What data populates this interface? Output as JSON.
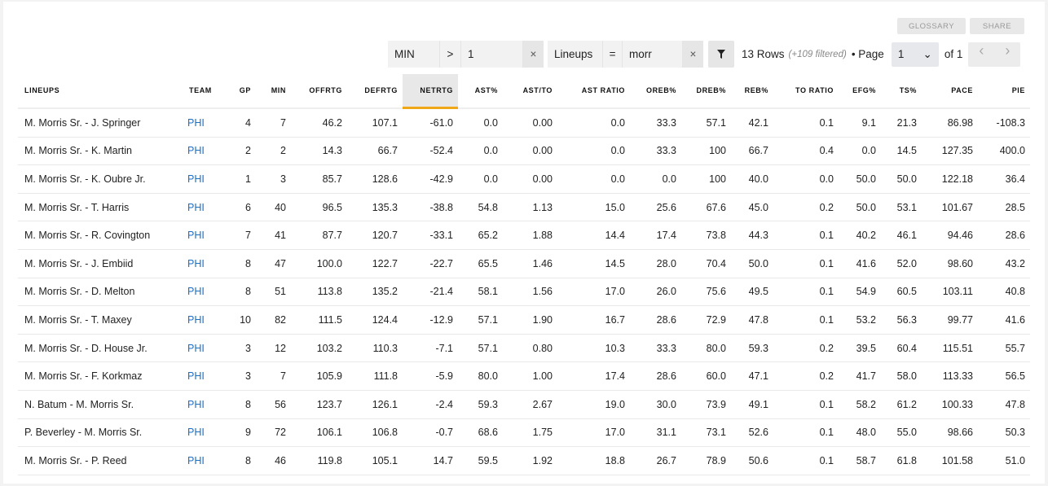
{
  "toolbar": {
    "glossary": "GLOSSARY",
    "share": "SHARE"
  },
  "filters": [
    {
      "field": "MIN",
      "op": ">",
      "value": "1"
    },
    {
      "field": "Lineups",
      "op": "=",
      "value": "morr"
    }
  ],
  "clear_icon": "×",
  "filter_icon": "funnel-icon",
  "rows_info": {
    "count": "13 Rows",
    "filtered": "(+109 filtered)",
    "page_label": "• Page",
    "page": "1",
    "of": "of 1"
  },
  "table": {
    "sorted_column": "NETRTG",
    "accent": "#f0a818",
    "headers": [
      "LINEUPS",
      "TEAM",
      "GP",
      "MIN",
      "OFFRTG",
      "DEFRTG",
      "NETRTG",
      "AST%",
      "AST/TO",
      "AST RATIO",
      "OREB%",
      "DREB%",
      "REB%",
      "TO RATIO",
      "EFG%",
      "TS%",
      "PACE",
      "PIE"
    ],
    "rows": [
      [
        "M. Morris Sr. - J. Springer",
        "PHI",
        "4",
        "7",
        "46.2",
        "107.1",
        "-61.0",
        "0.0",
        "0.00",
        "0.0",
        "33.3",
        "57.1",
        "42.1",
        "0.1",
        "9.1",
        "21.3",
        "86.98",
        "-108.3"
      ],
      [
        "M. Morris Sr. - K. Martin",
        "PHI",
        "2",
        "2",
        "14.3",
        "66.7",
        "-52.4",
        "0.0",
        "0.00",
        "0.0",
        "33.3",
        "100",
        "66.7",
        "0.4",
        "0.0",
        "14.5",
        "127.35",
        "400.0"
      ],
      [
        "M. Morris Sr. - K. Oubre Jr.",
        "PHI",
        "1",
        "3",
        "85.7",
        "128.6",
        "-42.9",
        "0.0",
        "0.00",
        "0.0",
        "0.0",
        "100",
        "40.0",
        "0.0",
        "50.0",
        "50.0",
        "122.18",
        "36.4"
      ],
      [
        "M. Morris Sr. - T. Harris",
        "PHI",
        "6",
        "40",
        "96.5",
        "135.3",
        "-38.8",
        "54.8",
        "1.13",
        "15.0",
        "25.6",
        "67.6",
        "45.0",
        "0.2",
        "50.0",
        "53.1",
        "101.67",
        "28.5"
      ],
      [
        "M. Morris Sr. - R. Covington",
        "PHI",
        "7",
        "41",
        "87.7",
        "120.7",
        "-33.1",
        "65.2",
        "1.88",
        "14.4",
        "17.4",
        "73.8",
        "44.3",
        "0.1",
        "40.2",
        "46.1",
        "94.46",
        "28.6"
      ],
      [
        "M. Morris Sr. - J. Embiid",
        "PHI",
        "8",
        "47",
        "100.0",
        "122.7",
        "-22.7",
        "65.5",
        "1.46",
        "14.5",
        "28.0",
        "70.4",
        "50.0",
        "0.1",
        "41.6",
        "52.0",
        "98.60",
        "43.2"
      ],
      [
        "M. Morris Sr. - D. Melton",
        "PHI",
        "8",
        "51",
        "113.8",
        "135.2",
        "-21.4",
        "58.1",
        "1.56",
        "17.0",
        "26.0",
        "75.6",
        "49.5",
        "0.1",
        "54.9",
        "60.5",
        "103.11",
        "40.8"
      ],
      [
        "M. Morris Sr. - T. Maxey",
        "PHI",
        "10",
        "82",
        "111.5",
        "124.4",
        "-12.9",
        "57.1",
        "1.90",
        "16.7",
        "28.6",
        "72.9",
        "47.8",
        "0.1",
        "53.2",
        "56.3",
        "99.77",
        "41.6"
      ],
      [
        "M. Morris Sr. - D. House Jr.",
        "PHI",
        "3",
        "12",
        "103.2",
        "110.3",
        "-7.1",
        "57.1",
        "0.80",
        "10.3",
        "33.3",
        "80.0",
        "59.3",
        "0.2",
        "39.5",
        "60.4",
        "115.51",
        "55.7"
      ],
      [
        "M. Morris Sr. - F. Korkmaz",
        "PHI",
        "3",
        "7",
        "105.9",
        "111.8",
        "-5.9",
        "80.0",
        "1.00",
        "17.4",
        "28.6",
        "60.0",
        "47.1",
        "0.2",
        "41.7",
        "58.0",
        "113.33",
        "56.5"
      ],
      [
        "N. Batum - M. Morris Sr.",
        "PHI",
        "8",
        "56",
        "123.7",
        "126.1",
        "-2.4",
        "59.3",
        "2.67",
        "19.0",
        "30.0",
        "73.9",
        "49.1",
        "0.1",
        "58.2",
        "61.2",
        "100.33",
        "47.8"
      ],
      [
        "P. Beverley - M. Morris Sr.",
        "PHI",
        "9",
        "72",
        "106.1",
        "106.8",
        "-0.7",
        "68.6",
        "1.75",
        "17.0",
        "31.1",
        "73.1",
        "52.6",
        "0.1",
        "48.0",
        "55.0",
        "98.66",
        "50.3"
      ],
      [
        "M. Morris Sr. - P. Reed",
        "PHI",
        "8",
        "46",
        "119.8",
        "105.1",
        "14.7",
        "59.5",
        "1.92",
        "18.8",
        "26.7",
        "78.9",
        "50.6",
        "0.1",
        "58.7",
        "61.8",
        "101.58",
        "51.0"
      ]
    ]
  }
}
